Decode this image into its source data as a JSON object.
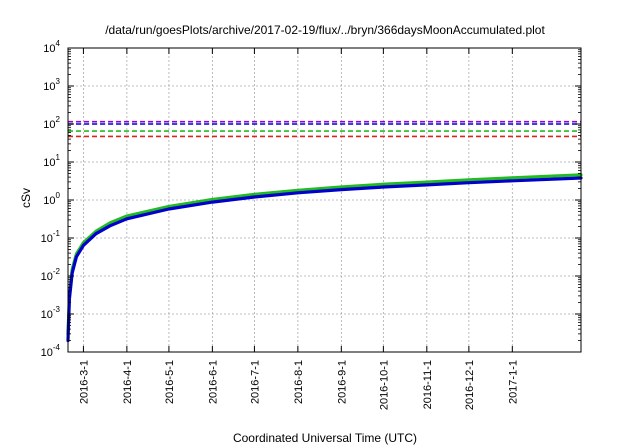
{
  "chart_data": {
    "type": "line",
    "title": "/data/run/goesPlots/archive/2017-02-19/flux/../bryn/366daysMoonAccumulated.plot",
    "xlabel": "Coordinated Universal Time (UTC)",
    "ylabel": "cSv",
    "yscale": "log",
    "ylim": [
      0.0001,
      10000
    ],
    "xlim": [
      "2016-02-19",
      "2017-02-19"
    ],
    "grid": true,
    "x_ticks": [
      "2016-3-1",
      "2016-4-1",
      "2016-5-1",
      "2016-6-1",
      "2016-7-1",
      "2016-8-1",
      "2016-9-1",
      "2016-10-1",
      "2016-11-1",
      "2016-12-1",
      "2017-1-1"
    ],
    "y_ticks": [
      {
        "value": 0.0001,
        "base": "10",
        "exp": "-4"
      },
      {
        "value": 0.001,
        "base": "10",
        "exp": "-3"
      },
      {
        "value": 0.01,
        "base": "10",
        "exp": "-2"
      },
      {
        "value": 0.1,
        "base": "10",
        "exp": "-1"
      },
      {
        "value": 1,
        "base": "10",
        "exp": "0"
      },
      {
        "value": 10,
        "base": "10",
        "exp": "1"
      },
      {
        "value": 100,
        "base": "10",
        "exp": "2"
      },
      {
        "value": 1000,
        "base": "10",
        "exp": "3"
      },
      {
        "value": 10000,
        "base": "10",
        "exp": "4"
      }
    ],
    "thresholds": [
      {
        "value": 115,
        "color": "#9400d3"
      },
      {
        "value": 100,
        "color": "#0000cd"
      },
      {
        "value": 65,
        "color": "#22bb22"
      },
      {
        "value": 47,
        "color": "#dd2222"
      }
    ],
    "series": [
      {
        "color": "#22bb22",
        "x": [
          "2016-02-19",
          "2016-02-20",
          "2016-02-22",
          "2016-02-25",
          "2016-03-01",
          "2016-03-10",
          "2016-03-20",
          "2016-04-01",
          "2016-05-01",
          "2016-06-01",
          "2016-07-01",
          "2016-08-01",
          "2016-09-01",
          "2016-10-01",
          "2016-11-01",
          "2016-12-01",
          "2017-01-01",
          "2017-02-19"
        ],
        "y": [
          0.0003,
          0.003,
          0.015,
          0.038,
          0.075,
          0.15,
          0.25,
          0.38,
          0.68,
          1.03,
          1.4,
          1.8,
          2.2,
          2.6,
          2.95,
          3.4,
          3.85,
          4.6
        ]
      },
      {
        "color": "#0000cd",
        "x": [
          "2016-02-19",
          "2016-02-20",
          "2016-02-22",
          "2016-02-25",
          "2016-03-01",
          "2016-03-10",
          "2016-03-20",
          "2016-04-01",
          "2016-05-01",
          "2016-06-01",
          "2016-07-01",
          "2016-08-01",
          "2016-09-01",
          "2016-10-01",
          "2016-11-01",
          "2016-12-01",
          "2017-01-01",
          "2017-02-19"
        ],
        "y": [
          0.0002,
          0.0025,
          0.012,
          0.032,
          0.064,
          0.13,
          0.21,
          0.32,
          0.58,
          0.88,
          1.2,
          1.55,
          1.88,
          2.2,
          2.5,
          2.85,
          3.2,
          3.8
        ]
      }
    ]
  }
}
